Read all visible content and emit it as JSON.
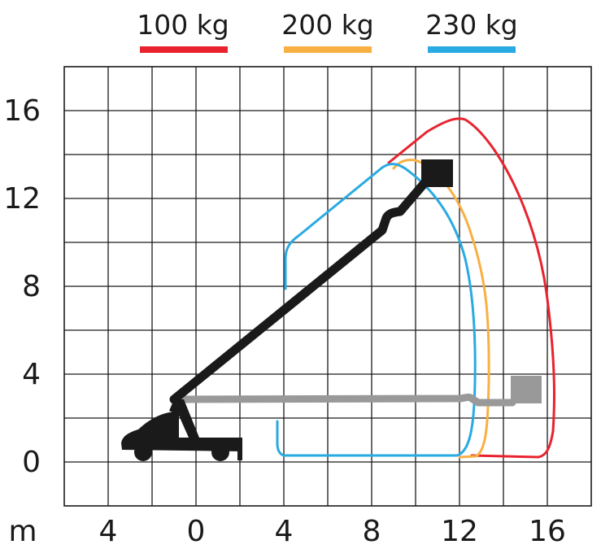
{
  "legend": [
    {
      "label": "100 kg",
      "color": "#e8232e"
    },
    {
      "label": "200 kg",
      "color": "#f8b043"
    },
    {
      "label": "230 kg",
      "color": "#29aae2"
    }
  ],
  "axes": {
    "unit_label": "m",
    "x_ticks": [
      "4",
      "0",
      "4",
      "8",
      "12",
      "16"
    ],
    "y_ticks": [
      "16",
      "12",
      "8",
      "4",
      "0"
    ]
  },
  "colors": {
    "boom_raised": "#1a1a1a",
    "boom_extended": "#999999",
    "grid": "#1a1a1a"
  },
  "icons": {
    "vehicle": "truck-icon",
    "raised_basket": "platform-basket-icon",
    "extended_basket": "platform-basket-icon"
  }
}
